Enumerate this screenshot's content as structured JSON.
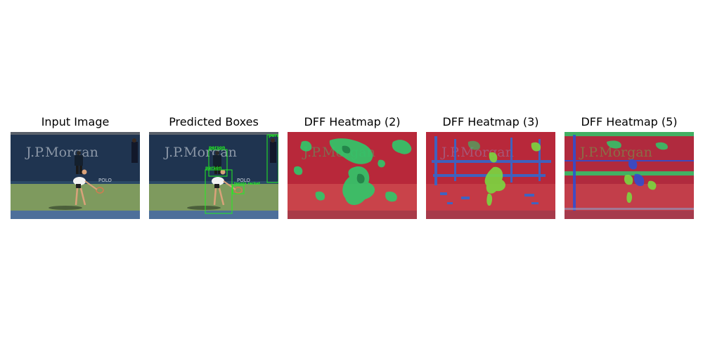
{
  "figure": {
    "panels": [
      {
        "title": "Input Image",
        "kind": "photo"
      },
      {
        "title": "Predicted Boxes",
        "kind": "boxes"
      },
      {
        "title": "DFF Heatmap (2)",
        "kind": "heatmap-2"
      },
      {
        "title": "DFF Heatmap (3)",
        "kind": "heatmap-3"
      },
      {
        "title": "DFF Heatmap (5)",
        "kind": "heatmap-5"
      }
    ],
    "scene": {
      "banner_text": "J.P.Morgan",
      "sign_text": "POLO"
    },
    "detections": [
      {
        "label": "person",
        "color": "#22ee22"
      },
      {
        "label": "person",
        "color": "#22ee22"
      },
      {
        "label": "person",
        "color": "#22ee22"
      },
      {
        "label": "tennis racket",
        "color": "#22ee22"
      }
    ],
    "colors": {
      "wall": "#1f3450",
      "court": "#7e9a5e",
      "heat_red": "#c0303c",
      "heat_green": "#2fc86a",
      "heat_blue": "#2a6bd6",
      "box": "#22ee22"
    }
  }
}
